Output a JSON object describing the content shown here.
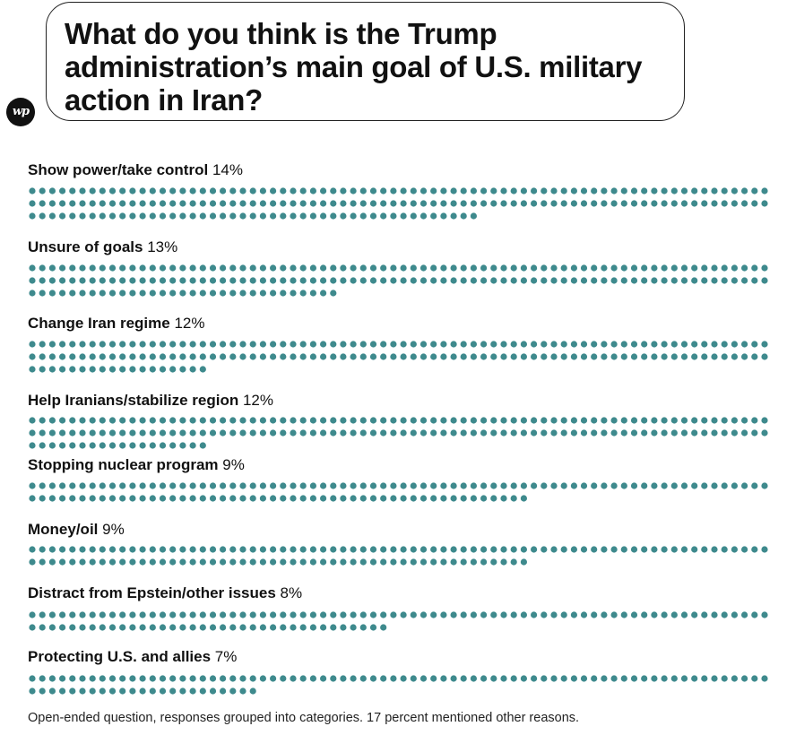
{
  "header": {
    "title": "What do you think is the Trump administration’s main goal of U.S. military action in Iran?",
    "logo_text": "wp"
  },
  "chart_data": {
    "type": "unit-dot",
    "title": "What do you think is the Trump administration’s main goal of U.S. military action in Iran?",
    "unit": "percent",
    "categories": [
      {
        "label": "Show power/take control",
        "value": 14,
        "value_label": "14%"
      },
      {
        "label": "Unsure of goals",
        "value": 13,
        "value_label": "13%"
      },
      {
        "label": "Change Iran regime",
        "value": 12,
        "value_label": "12%"
      },
      {
        "label": "Help Iranians/stabilize region",
        "value": 12,
        "value_label": "12%"
      },
      {
        "label": "Stopping nuclear program",
        "value": 9,
        "value_label": "9%"
      },
      {
        "label": "Money/oil",
        "value": 9,
        "value_label": "9%"
      },
      {
        "label": "Distract from Epstein/other issues",
        "value": 8,
        "value_label": "8%"
      },
      {
        "label": "Protecting U.S. and allies",
        "value": 7,
        "value_label": "7%"
      }
    ],
    "dot_color": "#3E8A8D"
  },
  "footer": {
    "note": "Open-ended question, responses grouped into categories. 17 percent mentioned other reasons."
  }
}
